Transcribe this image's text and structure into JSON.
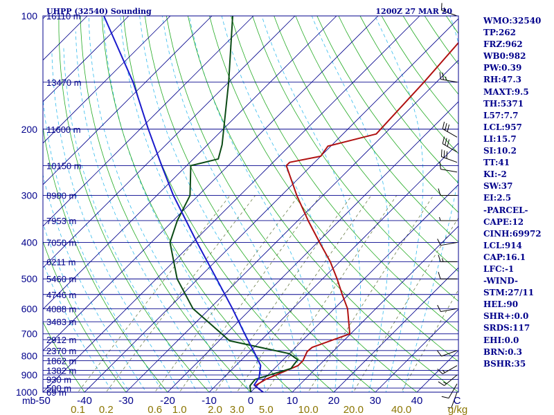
{
  "header": {
    "title": "UHPP (32540) Sounding",
    "time": "1200Z 27 MAR 20"
  },
  "colors": {
    "frame": "#00008b",
    "isobars": "#00008b",
    "isotherms": "#00008b",
    "dry_adiabats": "#22aa22",
    "moist_adiabats": "#33bbee",
    "mixing_ratio": "#556b2f",
    "temperature": "#b01010",
    "dewpoint": "#0a4a14",
    "parcel": "#1a1acc",
    "sidebar_text": "#00008b",
    "bottom_axis_label": "#8b7500"
  },
  "chart_data": {
    "type": "skew-t log-p sounding",
    "title": "UHPP (32540) Sounding",
    "subtitle": "1200Z 27 MAR 20",
    "xlabel": "C",
    "ylabel": "mb",
    "x_range": [
      -50,
      50
    ],
    "y_range": [
      1000,
      100
    ],
    "pressure_ticks": [
      {
        "p": 100,
        "label": "100"
      },
      {
        "p": 200,
        "label": "200"
      },
      {
        "p": 300,
        "label": "300"
      },
      {
        "p": 400,
        "label": "400"
      },
      {
        "p": 500,
        "label": "500"
      },
      {
        "p": 600,
        "label": "600"
      },
      {
        "p": 700,
        "label": "700"
      },
      {
        "p": 800,
        "label": "800"
      },
      {
        "p": 900,
        "label": "900"
      },
      {
        "p": 1000,
        "label": "1000"
      }
    ],
    "temperature_ticks": [
      {
        "t": -50,
        "label": "-50"
      },
      {
        "t": -40,
        "label": "-40"
      },
      {
        "t": -30,
        "label": "-30"
      },
      {
        "t": -20,
        "label": "-20"
      },
      {
        "t": -10,
        "label": "-10"
      },
      {
        "t": 0,
        "label": "0"
      },
      {
        "t": 10,
        "label": "10"
      },
      {
        "t": 20,
        "label": "20"
      },
      {
        "t": 30,
        "label": "30"
      },
      {
        "t": 40,
        "label": "40"
      }
    ],
    "mixing_ratio_ticks": [
      {
        "w": 0.1,
        "label": "0.1"
      },
      {
        "w": 0.2,
        "label": "0.2"
      },
      {
        "w": 0.6,
        "label": "0.6"
      },
      {
        "w": 1.0,
        "label": "1.0"
      },
      {
        "w": 2.0,
        "label": "2.0"
      },
      {
        "w": 3.0,
        "label": "3.0"
      },
      {
        "w": 5.0,
        "label": "5.0"
      },
      {
        "w": 10.0,
        "label": "10.0"
      },
      {
        "w": 20.0,
        "label": "20.0"
      },
      {
        "w": 40.0,
        "label": "40.0"
      }
    ],
    "mixing_ratio_unit": "g/kg",
    "height_labels": [
      {
        "p": 1000,
        "label": "69 m"
      },
      {
        "p": 975,
        "label": "500 m"
      },
      {
        "p": 925,
        "label": "930 m"
      },
      {
        "p": 875,
        "label": "1382 m"
      },
      {
        "p": 825,
        "label": "1862 m"
      },
      {
        "p": 775,
        "label": "2370 m"
      },
      {
        "p": 725,
        "label": "2912 m"
      },
      {
        "p": 650,
        "label": "3483 m"
      },
      {
        "p": 600,
        "label": "4088 m"
      },
      {
        "p": 550,
        "label": "4746 m"
      },
      {
        "p": 500,
        "label": "5460 m"
      },
      {
        "p": 450,
        "label": "6211 m"
      },
      {
        "p": 400,
        "label": "7050 m"
      },
      {
        "p": 350,
        "label": "7953 m"
      },
      {
        "p": 300,
        "label": "8980 m"
      },
      {
        "p": 250,
        "label": "10150 m"
      },
      {
        "p": 200,
        "label": "11600 m"
      },
      {
        "p": 150,
        "label": "13470 m"
      },
      {
        "p": 100,
        "label": "16110 m"
      }
    ],
    "series": [
      {
        "key": "temperature",
        "points": [
          [
            1000,
            3.0
          ],
          [
            962,
            -0.5
          ],
          [
            925,
            0.5
          ],
          [
            850,
            5.0
          ],
          [
            825,
            5.0
          ],
          [
            780,
            3.8
          ],
          [
            760,
            4.0
          ],
          [
            700,
            9.8
          ],
          [
            600,
            3.2
          ],
          [
            550,
            -1.5
          ],
          [
            500,
            -6.5
          ],
          [
            450,
            -12.3
          ],
          [
            400,
            -19.5
          ],
          [
            350,
            -27.5
          ],
          [
            300,
            -36.3
          ],
          [
            250,
            -46.0
          ],
          [
            245,
            -46.0
          ],
          [
            236,
            -40.0
          ],
          [
            222,
            -40.7
          ],
          [
            206,
            -32.0
          ],
          [
            150,
            -33.0
          ],
          [
            100,
            -35.0
          ]
        ]
      },
      {
        "key": "dewpoint",
        "points": [
          [
            1000,
            0.0
          ],
          [
            962,
            -1.7
          ],
          [
            925,
            -2.0
          ],
          [
            865,
            4.0
          ],
          [
            850,
            3.8
          ],
          [
            820,
            3.5
          ],
          [
            790,
            0.0
          ],
          [
            730,
            -17.5
          ],
          [
            700,
            -21.0
          ],
          [
            600,
            -34.0
          ],
          [
            500,
            -45.0
          ],
          [
            400,
            -55.5
          ],
          [
            350,
            -59.0
          ],
          [
            300,
            -62.0
          ],
          [
            250,
            -69.0
          ],
          [
            240,
            -64.0
          ],
          [
            220,
            -66.5
          ],
          [
            150,
            -80.0
          ],
          [
            100,
            -95.0
          ]
        ]
      },
      {
        "key": "parcel",
        "points": [
          [
            1000,
            3.0
          ],
          [
            957,
            -0.9
          ],
          [
            914,
            -1.5
          ],
          [
            850,
            -4.0
          ],
          [
            800,
            -7.5
          ],
          [
            700,
            -15.5
          ],
          [
            600,
            -24.5
          ],
          [
            500,
            -35.5
          ],
          [
            400,
            -49.0
          ],
          [
            300,
            -66.0
          ],
          [
            250,
            -76.0
          ],
          [
            200,
            -88.0
          ],
          [
            150,
            -103.0
          ],
          [
            100,
            -126.0
          ]
        ]
      }
    ],
    "wind_barbs": [
      {
        "p": 1000,
        "dir": 200,
        "spd": 5
      },
      {
        "p": 950,
        "dir": 210,
        "spd": 10
      },
      {
        "p": 900,
        "dir": 230,
        "spd": 15
      },
      {
        "p": 850,
        "dir": 240,
        "spd": 15
      },
      {
        "p": 775,
        "dir": 250,
        "spd": 10
      },
      {
        "p": 600,
        "dir": 260,
        "spd": 10
      },
      {
        "p": 500,
        "dir": 270,
        "spd": 10
      },
      {
        "p": 450,
        "dir": 270,
        "spd": 15
      },
      {
        "p": 400,
        "dir": 260,
        "spd": 10
      },
      {
        "p": 350,
        "dir": 270,
        "spd": 5
      },
      {
        "p": 300,
        "dir": 270,
        "spd": 10
      },
      {
        "p": 260,
        "dir": 280,
        "spd": 10
      },
      {
        "p": 245,
        "dir": 290,
        "spd": 30
      },
      {
        "p": 230,
        "dir": 300,
        "spd": 30
      },
      {
        "p": 210,
        "dir": 300,
        "spd": 30
      },
      {
        "p": 150,
        "dir": 280,
        "spd": 25
      },
      {
        "p": 100,
        "dir": 290,
        "spd": 15
      }
    ]
  },
  "sidebar": {
    "lines": [
      "WMO:32540",
      "TP:262",
      "FRZ:962",
      "WB0:982",
      "PW:0.39",
      "RH:47.3",
      "MAXT:9.5",
      "TH:5371",
      "L57:7.7",
      "LCL:957",
      "LI:15.7",
      "SI:10.2",
      "TT:41",
      "KI:-2",
      "SW:37",
      "EI:2.5",
      "-PARCEL-",
      "CAPE:12",
      "CINH:69972",
      "LCL:914",
      "CAP:16.1",
      "LFC:-1",
      "-WIND-",
      "STM:27/11",
      "HEL:90",
      "SHR+:0.0",
      "SRDS:117",
      "EHI:0.0",
      "BRN:0.3",
      "BSHR:35"
    ]
  }
}
